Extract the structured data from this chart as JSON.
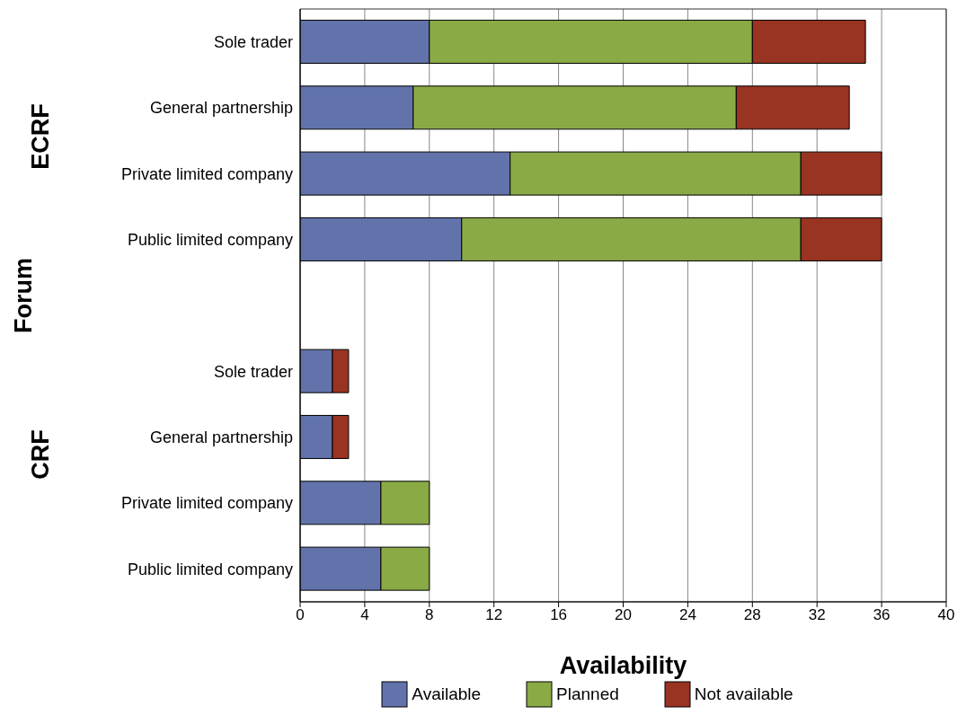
{
  "chart_data": {
    "type": "bar",
    "orientation": "horizontal",
    "stacked": true,
    "xlabel": "Availability",
    "ylabel": "Forum",
    "annotations": [
      "ECRF",
      "CRF"
    ],
    "categories": [
      "Sole trader",
      "General partnership",
      "Private limited company",
      "Public limited company",
      null,
      "Sole trader",
      "General partnership",
      "Private limited company",
      "Public limited company"
    ],
    "series": [
      {
        "name": "Available",
        "color": "#6173aa",
        "values": [
          8,
          7,
          13,
          10,
          null,
          2,
          2,
          5,
          5
        ]
      },
      {
        "name": "Planned",
        "color": "#8aaa46",
        "values": [
          20,
          20,
          18,
          21,
          null,
          0,
          0,
          3,
          3
        ]
      },
      {
        "name": "Not available",
        "color": "#993322",
        "values": [
          7,
          7,
          5,
          5,
          null,
          1,
          1,
          0,
          0
        ]
      }
    ],
    "xlim": [
      0,
      40
    ],
    "xticks": [
      0,
      4,
      8,
      12,
      16,
      20,
      24,
      28,
      32,
      36,
      40
    ],
    "grid": "x",
    "legend": "bottom"
  }
}
